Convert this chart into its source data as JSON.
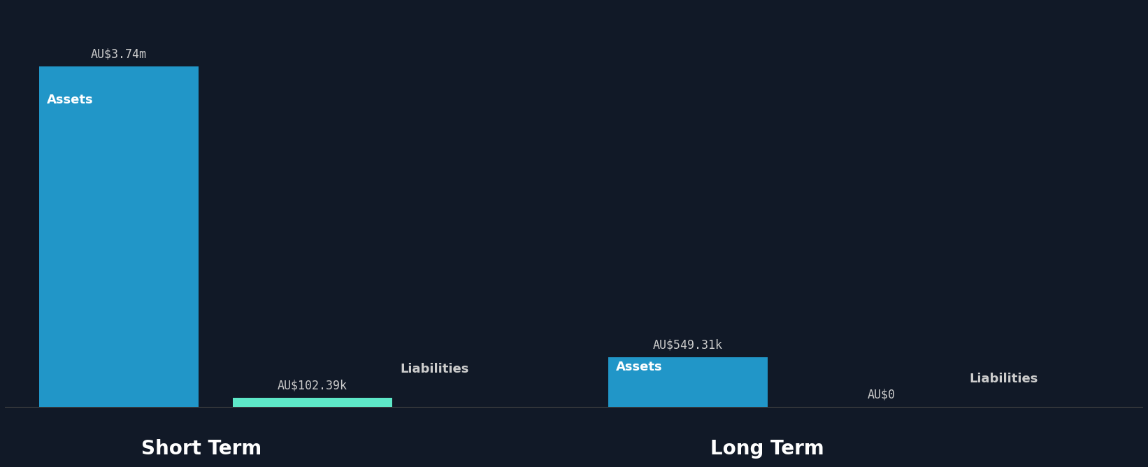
{
  "background_color": "#111927",
  "axis_line_color": "#ffffff",
  "groups": [
    {
      "label": "Short Term",
      "bars": [
        {
          "name": "Assets",
          "value": 3740000,
          "color": "#2196c8",
          "label_value": "AU$3.74m",
          "text_inside": "Assets"
        },
        {
          "name": "Liabilities",
          "value": 102390,
          "color": "#5ee8c8",
          "label_value": "AU$102.39k",
          "text_inside": "Liabilities"
        }
      ]
    },
    {
      "label": "Long Term",
      "bars": [
        {
          "name": "Assets",
          "value": 549310,
          "color": "#2196c8",
          "label_value": "AU$549.31k",
          "text_inside": "Assets"
        },
        {
          "name": "Liabilities",
          "value": 0,
          "color": "#2196c8",
          "label_value": "AU$0",
          "text_inside": "Liabilities"
        }
      ]
    }
  ],
  "group_label_color": "#ffffff",
  "group_label_fontsize": 20,
  "bar_label_fontsize": 12,
  "bar_text_fontsize": 13,
  "value_label_color": "#cccccc",
  "text_inside_color": "#ffffff",
  "liabilities_text_color": "#cccccc"
}
